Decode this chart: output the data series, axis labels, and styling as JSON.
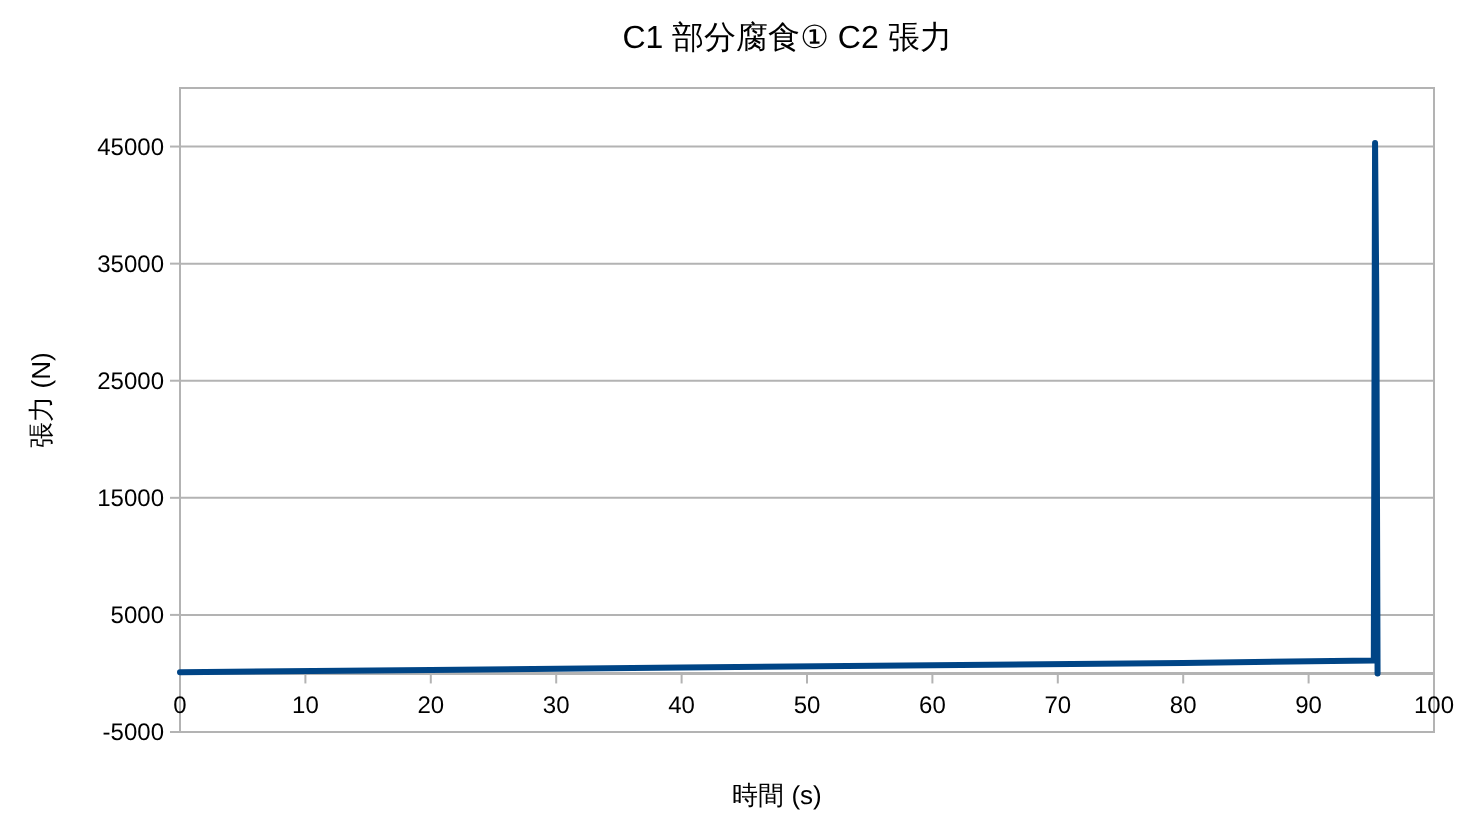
{
  "chart_data": {
    "type": "line",
    "title": "C1  部分腐食①  C2 張力",
    "xlabel": "時間 (s)",
    "ylabel": "張力 (N)",
    "x": [
      0,
      20,
      40,
      60,
      80,
      95.2,
      95.3,
      95.4,
      95.5
    ],
    "series": [
      {
        "color": "#004586",
        "values": [
          100,
          300,
          500,
          700,
          900,
          1100,
          45300,
          32000,
          0
        ]
      }
    ],
    "xlim": [
      0,
      100
    ],
    "xticks": [
      0,
      10,
      20,
      30,
      40,
      50,
      60,
      70,
      80,
      90,
      100
    ],
    "ylim": [
      -5000,
      50000
    ],
    "yticks": [
      -5000,
      5000,
      15000,
      25000,
      35000,
      45000
    ],
    "grid": "y",
    "marker": "none",
    "line_style": "solid"
  }
}
